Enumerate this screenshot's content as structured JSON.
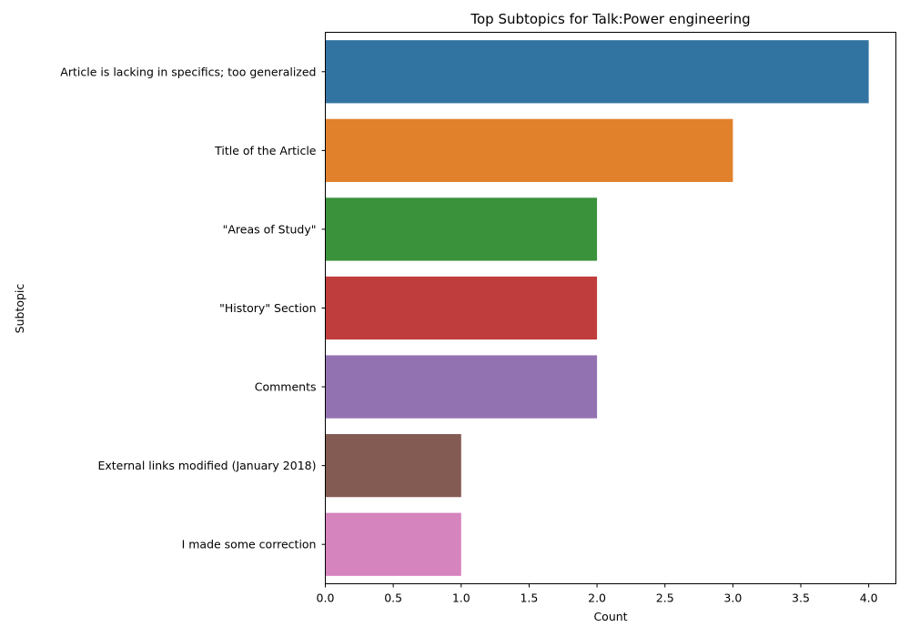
{
  "chart_data": {
    "type": "bar",
    "orientation": "horizontal",
    "title": "Top Subtopics for Talk:Power engineering",
    "xlabel": "Count",
    "ylabel": "Subtopic",
    "xlim": [
      0,
      4.2
    ],
    "xticks": [
      "0.0",
      "0.5",
      "1.0",
      "1.5",
      "2.0",
      "2.5",
      "3.0",
      "3.5",
      "4.0"
    ],
    "categories": [
      "Article is lacking in specifics; too generalized",
      "Title of the Article",
      "\"Areas of Study\"",
      "\"History\" Section",
      "Comments",
      "External links modified (January 2018)",
      "I made some correction"
    ],
    "values": [
      4,
      3,
      2,
      2,
      2,
      1,
      1
    ],
    "colors": [
      "#3274a1",
      "#e1812c",
      "#3a923a",
      "#c03d3e",
      "#9372b2",
      "#845b53",
      "#d684bd"
    ],
    "grid": false
  }
}
